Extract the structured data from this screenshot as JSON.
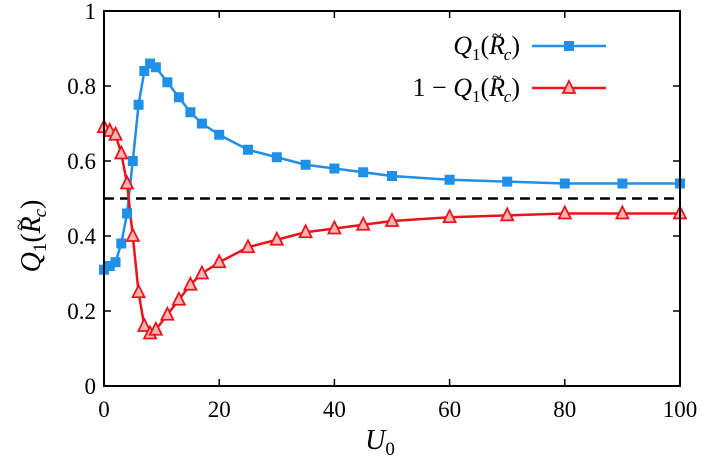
{
  "chart_data": {
    "type": "line",
    "xlabel": "U_0",
    "ylabel": "Q_1(R̃_c)",
    "xlim": [
      0,
      100
    ],
    "ylim": [
      0,
      1
    ],
    "x_ticks": [
      "0",
      "20",
      "40",
      "60",
      "80",
      "100"
    ],
    "y_ticks": [
      "0",
      "0.2",
      "0.4",
      "0.6",
      "0.8",
      "1"
    ],
    "legend_position": "top-right",
    "grid": false,
    "reference_line": {
      "y": 0.5,
      "style": "dashed",
      "color": "#000000"
    },
    "series": [
      {
        "name": "Q1(R̃c)",
        "color": "#1f8fe8",
        "marker": "square",
        "x": [
          0,
          1,
          2,
          3,
          4,
          5,
          6,
          7,
          8,
          9,
          11,
          13,
          15,
          17,
          20,
          25,
          30,
          35,
          40,
          45,
          50,
          60,
          70,
          80,
          90,
          100
        ],
        "y": [
          0.31,
          0.32,
          0.33,
          0.38,
          0.46,
          0.6,
          0.75,
          0.84,
          0.86,
          0.85,
          0.81,
          0.77,
          0.73,
          0.7,
          0.67,
          0.63,
          0.61,
          0.59,
          0.58,
          0.57,
          0.56,
          0.55,
          0.545,
          0.54,
          0.54,
          0.54
        ]
      },
      {
        "name": "1 − Q1(R̃c)",
        "color": "#e8141c",
        "marker": "triangle",
        "x": [
          0,
          1,
          2,
          3,
          4,
          5,
          6,
          7,
          8,
          9,
          11,
          13,
          15,
          17,
          20,
          25,
          30,
          35,
          40,
          45,
          50,
          60,
          70,
          80,
          90,
          100
        ],
        "y": [
          0.69,
          0.68,
          0.67,
          0.62,
          0.54,
          0.4,
          0.25,
          0.16,
          0.14,
          0.15,
          0.19,
          0.23,
          0.27,
          0.3,
          0.33,
          0.37,
          0.39,
          0.41,
          0.42,
          0.43,
          0.44,
          0.45,
          0.455,
          0.46,
          0.46,
          0.46
        ]
      }
    ]
  }
}
